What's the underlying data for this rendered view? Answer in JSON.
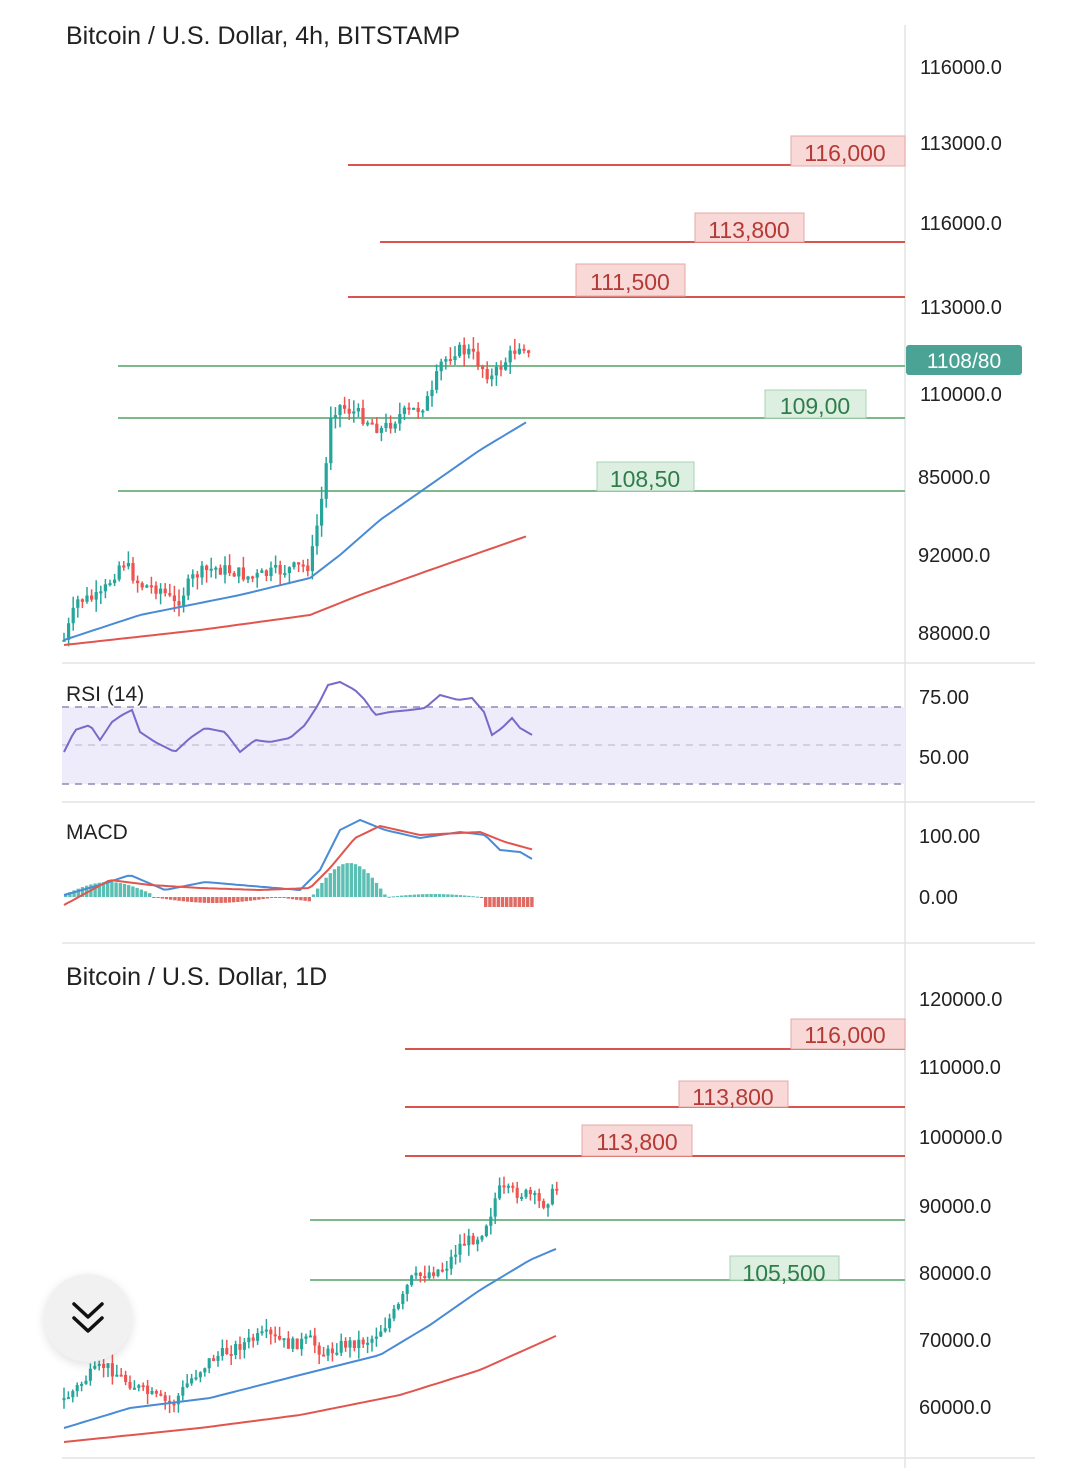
{
  "chart_data": [
    {
      "type": "candlestick",
      "title": "Bitcoin / U.S. Dollar, 4h, BITSTAMP",
      "y_axis_labels": [
        "116000.0",
        "113000.0",
        "116000.0",
        "113000.0",
        "110000.0",
        "85000.0",
        "92000.0",
        "88000.0"
      ],
      "current_price_label": "1108/80",
      "resistance_levels": [
        "116,000",
        "113,800",
        "111,500"
      ],
      "support_levels": [
        "109,00",
        "108,50"
      ],
      "approx_price_range": [
        102000,
        117000
      ],
      "approx_last_close": 111000,
      "moving_averages": [
        {
          "color": "#4a8bd6"
        },
        {
          "color": "#e0564f"
        }
      ],
      "grid": false
    },
    {
      "type": "line",
      "title": "RSI (14)",
      "y_axis_labels": [
        "75.00",
        "50.00"
      ],
      "bands": [
        70,
        50,
        30
      ],
      "ylim": [
        25,
        82
      ],
      "approx_last_value": 63,
      "line_color": "#7b68c9"
    },
    {
      "type": "bar",
      "title": "MACD",
      "y_axis_labels": [
        "100.00",
        "0.00"
      ],
      "approx_peak": 120,
      "line_colors": [
        "#4a8bd6",
        "#e0564f"
      ],
      "histogram_colors": {
        "positive": "#5cbfb3",
        "negative": "#e06a64"
      }
    },
    {
      "type": "candlestick",
      "title": "Bitcoin / U.S. Dollar, 1D",
      "y_axis_labels": [
        "120000.0",
        "110000.0",
        "100000.0",
        "90000.0",
        "80000.0",
        "70000.0",
        "60000.0"
      ],
      "resistance_levels": [
        "116,000",
        "113,800",
        "113,800"
      ],
      "support_levels": [
        "105,500"
      ],
      "approx_price_range": [
        58000,
        94000
      ],
      "moving_averages": [
        {
          "color": "#4a8bd6"
        },
        {
          "color": "#e0564f"
        }
      ],
      "grid": false
    }
  ],
  "colors": {
    "bull": "#26a69a",
    "bear": "#ef5350",
    "resistance": "#d9544f",
    "support": "#7fb88b",
    "price_tag": "#4aa394"
  },
  "icons": {
    "collapse": "chevron-double-down-icon"
  }
}
